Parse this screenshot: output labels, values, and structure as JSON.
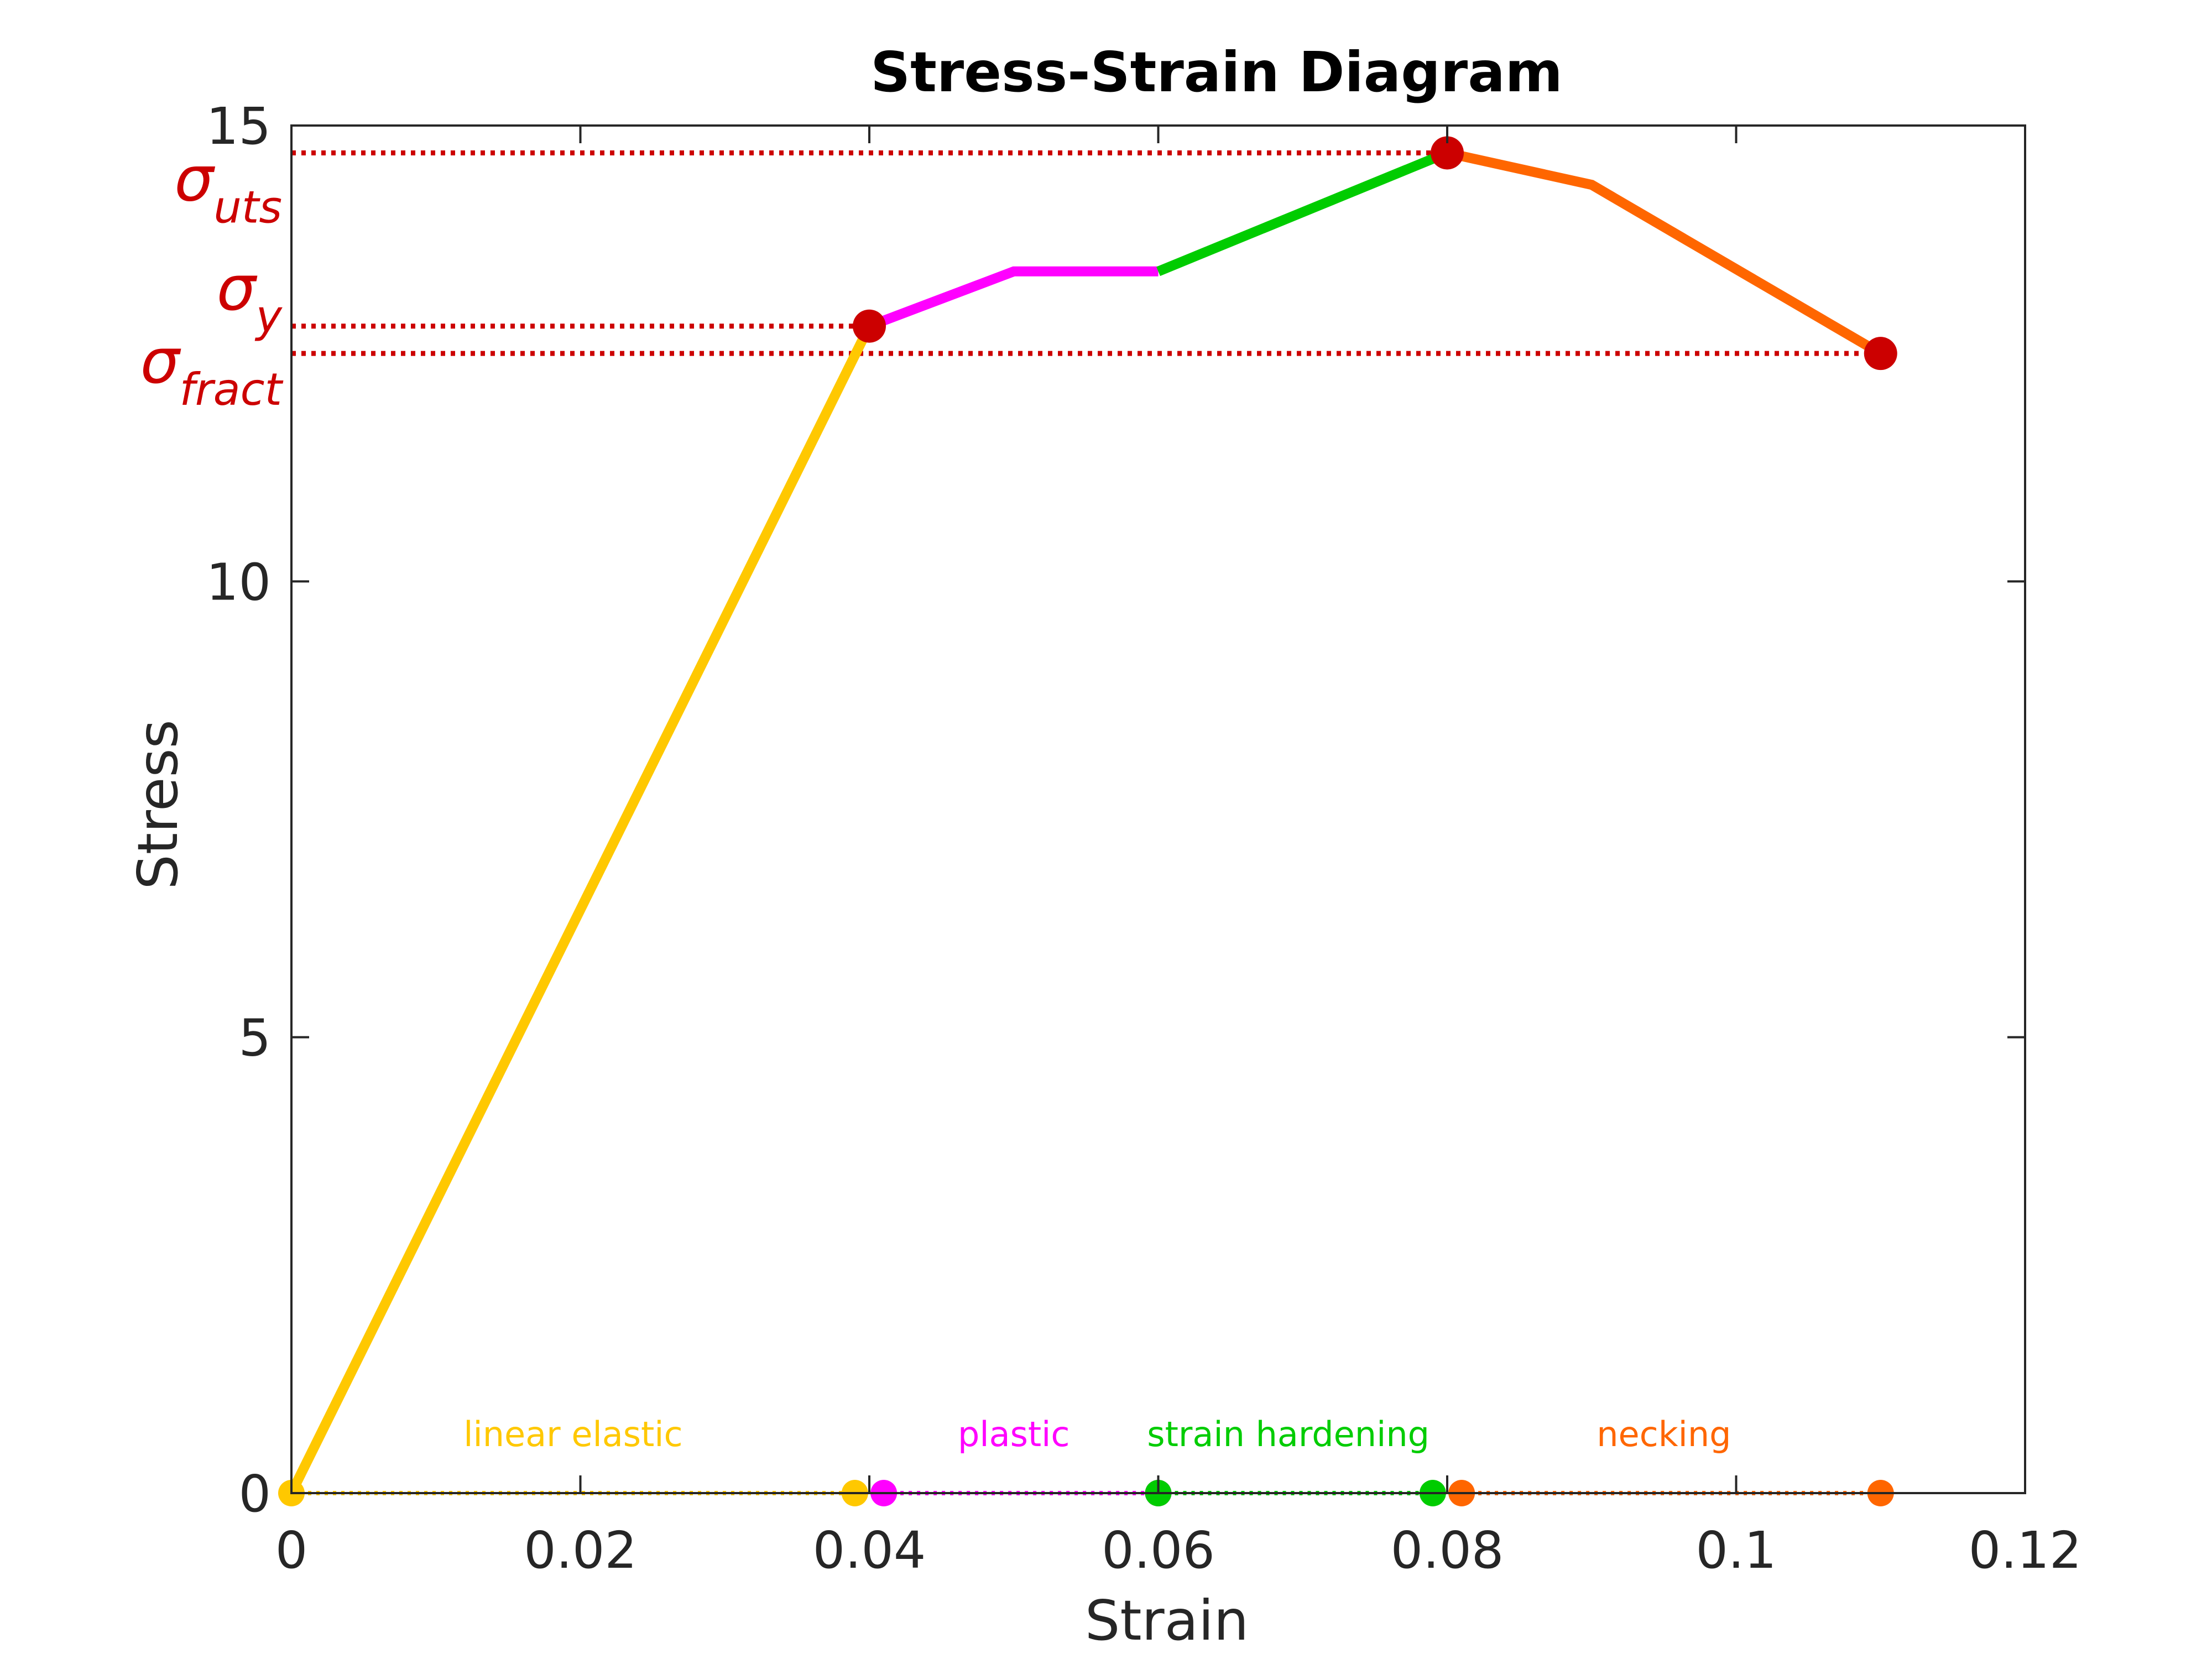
{
  "chart_data": {
    "type": "line",
    "title": "Stress-Strain Diagram",
    "xlabel": "Strain",
    "ylabel": "Stress",
    "xlim": [
      0,
      0.12
    ],
    "ylim": [
      0,
      15
    ],
    "xticks": [
      0,
      0.02,
      0.04,
      0.06,
      0.08,
      0.1,
      0.12
    ],
    "xtick_labels": [
      "0",
      "0.02",
      "0.04",
      "0.06",
      "0.08",
      "0.1",
      "0.12"
    ],
    "yticks": [
      0,
      5,
      10,
      15
    ],
    "ytick_labels": [
      "0",
      "5",
      "10",
      "15"
    ],
    "grid": false,
    "series": [
      {
        "color": "#ffc800",
        "x": [
          0,
          0.04
        ],
        "y": [
          0,
          12.8
        ]
      },
      {
        "color": "#ff00ff",
        "x": [
          0.04,
          0.05,
          0.06
        ],
        "y": [
          12.8,
          13.4,
          13.4
        ]
      },
      {
        "color": "#00cc00",
        "x": [
          0.06,
          0.08
        ],
        "y": [
          13.4,
          14.7
        ]
      },
      {
        "color": "#ff6600",
        "x": [
          0.08,
          0.09,
          0.11
        ],
        "y": [
          14.7,
          14.35,
          12.5
        ]
      }
    ],
    "key_points": [
      {
        "x": 0.04,
        "y": 12.8,
        "color": "#cc0000"
      },
      {
        "x": 0.08,
        "y": 14.7,
        "color": "#cc0000"
      },
      {
        "x": 0.11,
        "y": 12.5,
        "color": "#cc0000"
      }
    ],
    "reference_lines": [
      {
        "y": 14.7,
        "x_end": 0.08,
        "color": "#cc0000"
      },
      {
        "y": 12.8,
        "x_end": 0.04,
        "color": "#cc0000"
      },
      {
        "y": 12.5,
        "x_end": 0.11,
        "color": "#cc0000"
      }
    ],
    "stress_labels": [
      {
        "base": "σ",
        "sub": "uts",
        "y": 14.3,
        "color": "#cc0000"
      },
      {
        "base": "σ",
        "sub": "y",
        "y": 13.1,
        "color": "#cc0000"
      },
      {
        "base": "σ",
        "sub": "fract",
        "y": 12.3,
        "color": "#cc0000"
      }
    ],
    "regions": [
      {
        "label": "linear elastic",
        "x_start": 0,
        "x_end": 0.039,
        "label_x": 0.0195,
        "color": "#ffc800"
      },
      {
        "label": "plastic",
        "x_start": 0.041,
        "x_end": 0.06,
        "label_x": 0.05,
        "color": "#ff00ff"
      },
      {
        "label": "strain hardening",
        "x_start": 0.06,
        "x_end": 0.079,
        "label_x": 0.069,
        "color": "#00cc00"
      },
      {
        "label": "necking",
        "x_start": 0.081,
        "x_end": 0.11,
        "label_x": 0.095,
        "color": "#ff6600"
      }
    ]
  }
}
